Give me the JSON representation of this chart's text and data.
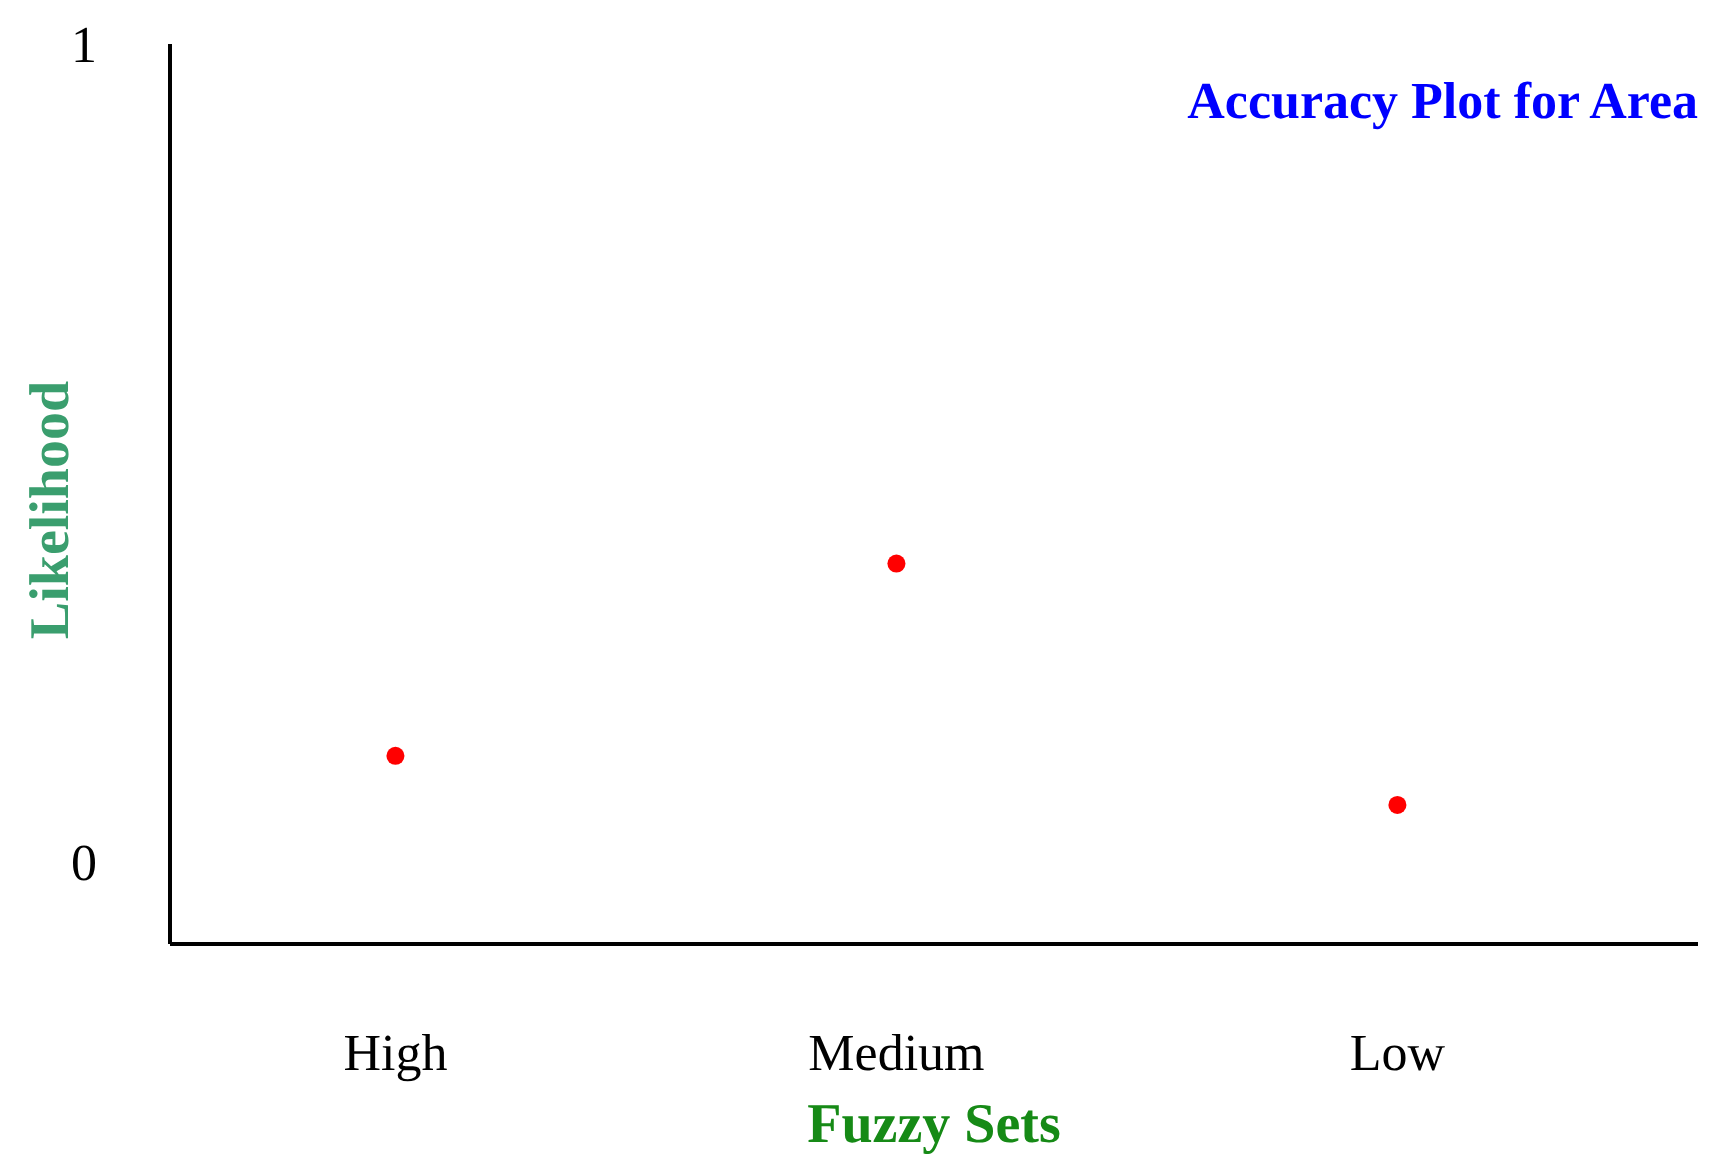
{
  "chart_data": {
    "type": "scatter",
    "title": "Accuracy Plot for Area",
    "xlabel": "Fuzzy Sets",
    "ylabel": "Likelihood",
    "categories": [
      "High",
      "Medium",
      "Low"
    ],
    "series": [
      {
        "color": "#ff0000",
        "values": [
          0.13,
          0.365,
          0.07
        ]
      }
    ],
    "ylim": [
      -0.1,
      1
    ],
    "yticks": [
      0,
      1
    ],
    "marker": "circle",
    "grid": false,
    "legend": false
  }
}
